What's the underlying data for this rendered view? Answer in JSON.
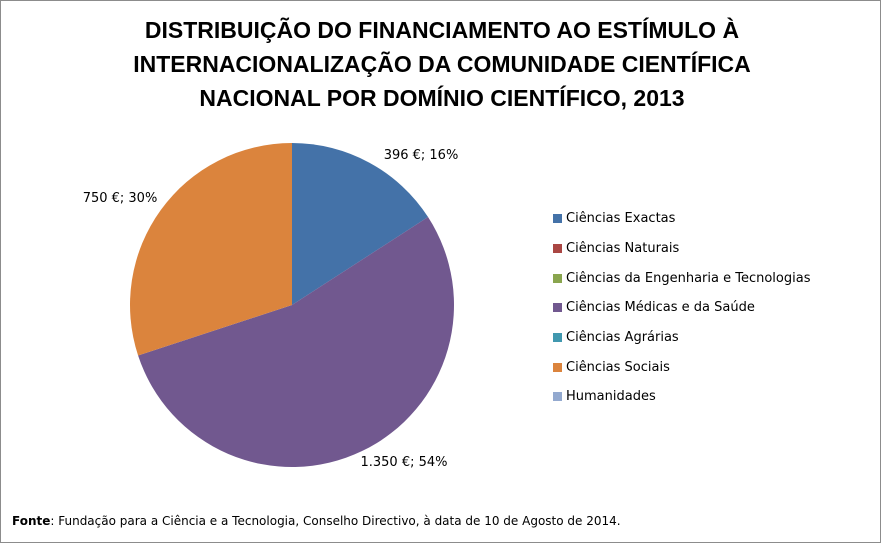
{
  "chart_data": {
    "type": "pie",
    "title_lines": [
      "DISTRIBUIÇÃO DO FINANCIAMENTO AO ESTÍMULO À",
      "INTERNACIONALIZAÇÃO DA COMUNIDADE CIENTÍFICA",
      "NACIONAL POR DOMÍNIO CIENTÍFICO, 2013"
    ],
    "categories": [
      "Ciências Exactas",
      "Ciências Naturais",
      "Ciências da Engenharia e Tecnologias",
      "Ciências Médicas e da Saúde",
      "Ciências Agrárias",
      "Ciências Sociais",
      "Humanidades"
    ],
    "colors": [
      "#4472A8",
      "#AA4643",
      "#89A54E",
      "#71588F",
      "#4198AF",
      "#DB843D",
      "#93A9CF"
    ],
    "values": [
      396,
      0,
      0,
      1350,
      0,
      750,
      0
    ],
    "percentages": [
      16,
      0,
      0,
      54,
      0,
      30,
      0
    ],
    "data_labels": [
      "396 €; 16%",
      "",
      "",
      "1.350 €; 54%",
      "",
      "750 €; 30%",
      ""
    ],
    "legend_position": "right"
  },
  "source": {
    "label": "Fonte",
    "text": ": Fundação para a Ciência e a Tecnologia, Conselho Directivo, à data de 10 de Agosto de 2014."
  }
}
